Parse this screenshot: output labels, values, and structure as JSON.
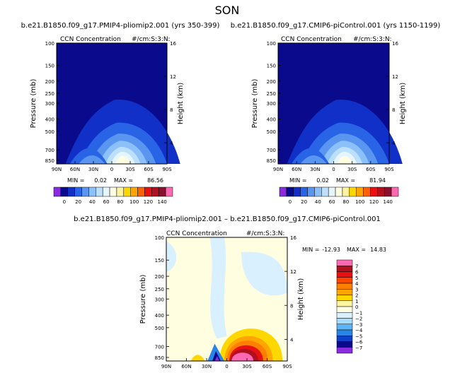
{
  "figure_title": "SON",
  "chart_data": [
    {
      "type": "heatmap",
      "panel": "left",
      "title": "b.e21.B1850.f09_g17.PMIP4-pliomip2.001 (yrs 350-399)",
      "field_label": "CCN Concentration",
      "units_label": "#/cm:S:3:N:",
      "ylabel": "Pressure (mb)",
      "ylabel_right": "Height (km)",
      "x_ticks": [
        "90N",
        "60N",
        "30N",
        "0",
        "30S",
        "60S",
        "90S"
      ],
      "y_ticks": [
        "100",
        "150",
        "200",
        "250",
        "300",
        "400",
        "500",
        "700",
        "850"
      ],
      "y_ticks_right": [
        "16",
        "12",
        "8",
        "4"
      ],
      "min_label": "MIN =",
      "min_value": "0.02",
      "max_label": "MAX =",
      "max_value": "86.56",
      "colorbar_ticks": [
        "0",
        "20",
        "40",
        "60",
        "80",
        "100",
        "120",
        "140"
      ],
      "colorbar_colors": [
        "#8a2be2",
        "#0a0a8c",
        "#1030c8",
        "#2a64e6",
        "#5a96f0",
        "#8cc0f8",
        "#bce0fc",
        "#e6f6ff",
        "#fffee0",
        "#fff3a0",
        "#ffd700",
        "#ffa500",
        "#ff6000",
        "#e81010",
        "#b01020",
        "#8b1030",
        "#ff69b4"
      ]
    },
    {
      "type": "heatmap",
      "panel": "right",
      "title": "b.e21.B1850.f09_g17.CMIP6-piControl.001 (yrs 1150-1199)",
      "field_label": "CCN Concentration",
      "units_label": "#/cm:S:3:N:",
      "ylabel": "Pressure (mb)",
      "ylabel_right": "Height (km)",
      "x_ticks": [
        "90N",
        "60N",
        "30N",
        "0",
        "30S",
        "60S",
        "90S"
      ],
      "y_ticks": [
        "100",
        "150",
        "200",
        "250",
        "300",
        "400",
        "500",
        "700",
        "850"
      ],
      "y_ticks_right": [
        "16",
        "12",
        "8",
        "4"
      ],
      "min_label": "MIN =",
      "min_value": "0.02",
      "max_label": "MAX =",
      "max_value": "81.94",
      "colorbar_ticks": [
        "0",
        "20",
        "40",
        "60",
        "80",
        "100",
        "120",
        "140"
      ],
      "colorbar_colors": [
        "#8a2be2",
        "#0a0a8c",
        "#1030c8",
        "#2a64e6",
        "#5a96f0",
        "#8cc0f8",
        "#bce0fc",
        "#e6f6ff",
        "#fffee0",
        "#fff3a0",
        "#ffd700",
        "#ffa500",
        "#ff6000",
        "#e81010",
        "#b01020",
        "#8b1030",
        "#ff69b4"
      ]
    },
    {
      "type": "heatmap",
      "panel": "bottom",
      "title": "b.e21.B1850.f09_g17.PMIP4-pliomip2.001 – b.e21.B1850.f09_g17.CMIP6-piControl.001",
      "field_label": "CCN Concentration",
      "units_label": "#/cm:S:3:N:",
      "ylabel": "Pressure (mb)",
      "ylabel_right": "Height (km)",
      "x_ticks": [
        "90N",
        "60N",
        "30N",
        "0",
        "30S",
        "60S",
        "90S"
      ],
      "y_ticks": [
        "100",
        "150",
        "200",
        "250",
        "300",
        "400",
        "500",
        "700",
        "850"
      ],
      "y_ticks_right": [
        "16",
        "12",
        "8",
        "4"
      ],
      "min_label": "MIN =",
      "min_value": "-12.93",
      "max_label": "MAX =",
      "max_value": "14.83",
      "colorbar_ticks": [
        "7",
        "6",
        "5",
        "4",
        "3",
        "2",
        "1",
        "0",
        "−1",
        "−2",
        "−3",
        "−4",
        "−5",
        "−6",
        "−7"
      ],
      "colorbar_colors": [
        "#ff69b4",
        "#b01020",
        "#e81010",
        "#ff4500",
        "#ff7f00",
        "#ffa500",
        "#ffd700",
        "#fff5a0",
        "#fffee0",
        "#d8f0ff",
        "#a8dcff",
        "#5ab4f5",
        "#2a84e6",
        "#1040c8",
        "#0a0a8c",
        "#8a2be2"
      ]
    }
  ]
}
